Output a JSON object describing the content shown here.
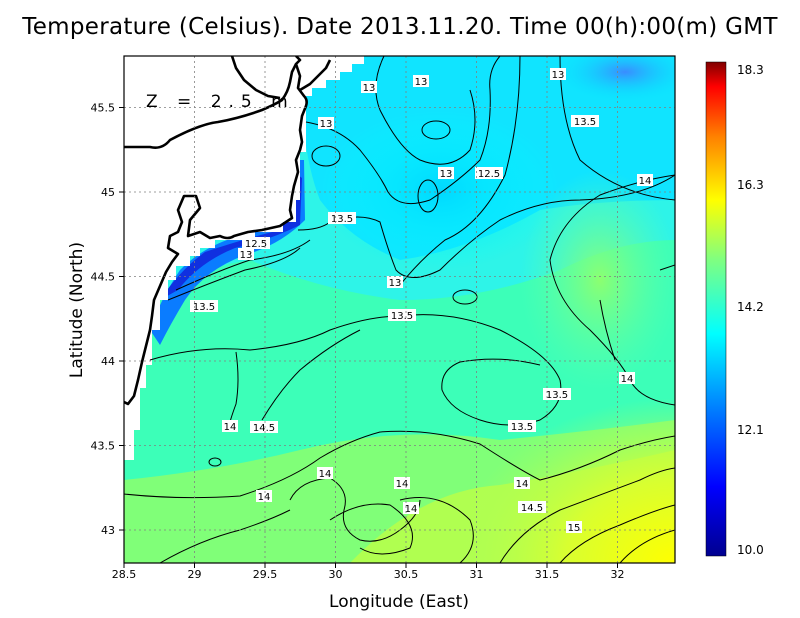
{
  "title": "Temperature (Celsius). Date 2013.11.20. Time 00(h):00(m)  GMT",
  "depth_label": "Z = 2.5 m",
  "x_axis": {
    "label": "Longitude (East)",
    "ticks": [
      "28.5",
      "29",
      "29.5",
      "30",
      "30.5",
      "31",
      "31.5",
      "32"
    ]
  },
  "y_axis": {
    "label": "Latitude (North)",
    "ticks": [
      "43",
      "43.5",
      "44",
      "44.5",
      "45",
      "45.5"
    ]
  },
  "colorbar": {
    "labels": [
      "18.3",
      "16.3",
      "14.2",
      "12.1",
      "10.0"
    ],
    "range": [
      10.0,
      18.3
    ]
  },
  "contour_labels": [
    "13",
    "13",
    "13",
    "13",
    "12.5",
    "13.5",
    "13",
    "14",
    "13.5",
    "12.5",
    "13",
    "13",
    "13.5",
    "13.5",
    "14",
    "13.5",
    "14",
    "13.5",
    "14.5",
    "14",
    "14",
    "14",
    "14",
    "14.5",
    "15",
    "14"
  ],
  "chart_data": {
    "type": "heatmap",
    "variable": "Temperature (Celsius)",
    "date": "2013.11.20",
    "time": "00(h):00(m) GMT",
    "depth": "Z = 2.5 m",
    "xlabel": "Longitude (East)",
    "ylabel": "Latitude (North)",
    "xlim": [
      28.5,
      32.4
    ],
    "ylim": [
      42.8,
      45.8
    ],
    "color_range": [
      10.0,
      18.3
    ],
    "contour_levels": [
      12.5,
      13,
      13.5,
      14,
      14.5,
      15
    ],
    "grid": true
  },
  "colors": {
    "land": "#ffffff",
    "coast": "#000000",
    "cold": "#0000aa",
    "mid": "#00ffff",
    "warm": "#ffff00",
    "hot": "#990000"
  }
}
